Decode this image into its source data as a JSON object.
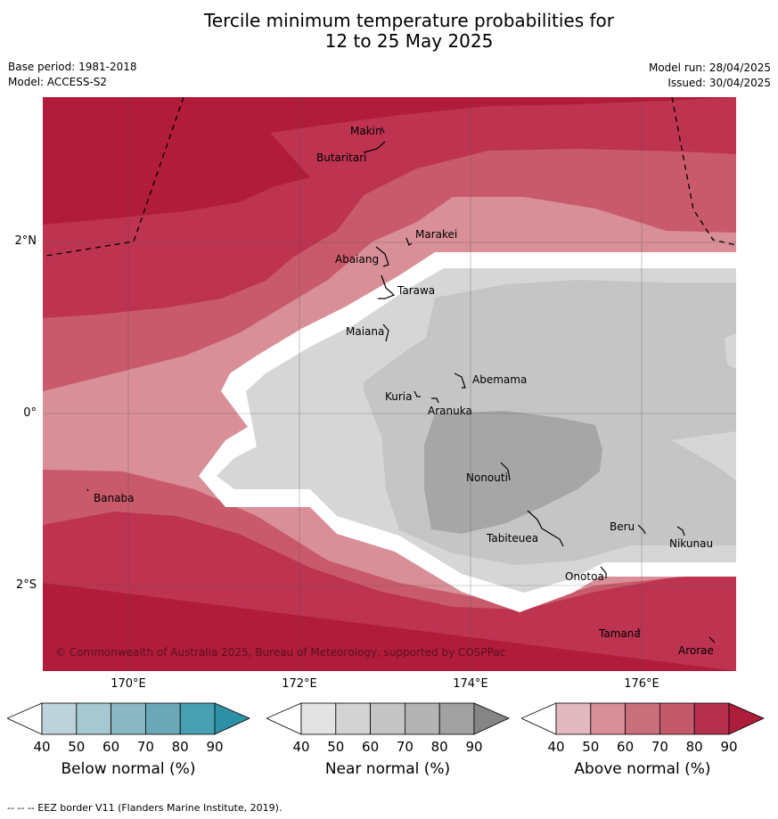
{
  "title_line1": "Tercile minimum temperature probabilities for",
  "title_line2": "12 to 25 May 2025",
  "meta": {
    "base_period": "Base period: 1981-2018",
    "model": "Model: ACCESS-S2",
    "model_run": "Model run: 28/04/2025",
    "issued": "Issued: 30/04/2025"
  },
  "map": {
    "lon_labels": [
      "170°E",
      "172°E",
      "174°E",
      "176°E"
    ],
    "lat_labels": [
      "2°N",
      "0°",
      "2°S"
    ],
    "places": [
      "Makin",
      "Butaritari",
      "Marakei",
      "Abaiang",
      "Tarawa",
      "Maiana",
      "Abemama",
      "Kuria",
      "Aranuka",
      "Banaba",
      "Nonouti",
      "Beru",
      "Tabiteuea",
      "Nikunau",
      "Onotoa",
      "Tamana",
      "Arorae"
    ],
    "copyright": "© Commonwealth of Australia 2025, Bureau of Meteorology, supported by COSPPac",
    "colors": {
      "above_90": "#b01c3a",
      "above_80": "#bd3350",
      "above_70": "#c85a6b",
      "above_60": "#d88f98",
      "near_40": "#d6d6d6",
      "near_50": "#c5c5c5",
      "near_60": "#a6a6a6",
      "sea_boundary": "#ffffff"
    }
  },
  "colorbars": [
    {
      "title": "Below normal (%)",
      "ticks": [
        "40",
        "50",
        "60",
        "70",
        "80",
        "90"
      ],
      "colors": [
        "#ffffff",
        "#bdd3dc",
        "#a6c8d0",
        "#8bb7c2",
        "#6aa8b7",
        "#46a0b2",
        "#2e90a4"
      ]
    },
    {
      "title": "Near normal (%)",
      "ticks": [
        "40",
        "50",
        "60",
        "70",
        "80",
        "90"
      ],
      "colors": [
        "#ffffff",
        "#e3e3e3",
        "#d3d3d3",
        "#c4c4c4",
        "#b3b3b3",
        "#a1a1a1",
        "#858585"
      ]
    },
    {
      "title": "Above normal (%)",
      "ticks": [
        "40",
        "50",
        "60",
        "70",
        "80",
        "90"
      ],
      "colors": [
        "#ffffff",
        "#e2b9c0",
        "#d88f98",
        "#c96f7c",
        "#c45a69",
        "#b6304d",
        "#ad1c3a"
      ]
    }
  ],
  "footer": "--  --  -- EEZ border V11 (Flanders Marine Institute, 2019)."
}
